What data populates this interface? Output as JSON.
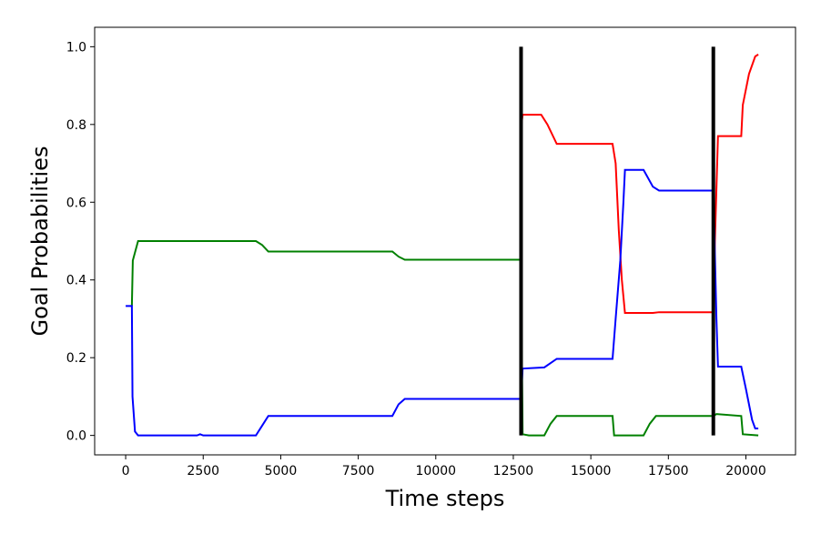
{
  "chart_data": {
    "type": "line",
    "xlabel": "Time steps",
    "ylabel": "Goal Probabilities",
    "xlim": [
      -1000,
      21600
    ],
    "ylim": [
      -0.05,
      1.05
    ],
    "xticks": [
      0,
      2500,
      5000,
      7500,
      10000,
      12500,
      15000,
      17500,
      20000
    ],
    "yticks": [
      {
        "value": 0,
        "label": "0.0"
      },
      0.2,
      0.4,
      0.6,
      0.8,
      {
        "value": 1,
        "label": "1.0"
      }
    ],
    "series": [
      {
        "color": "#ff0000",
        "x": [
          12750,
          12800,
          13400,
          13600,
          13900,
          15700,
          15800,
          15900,
          16000,
          16100,
          17000,
          17200,
          18950,
          19000,
          19100,
          19850,
          19900,
          20100,
          20300,
          20400
        ],
        "values": [
          0.79,
          0.825,
          0.825,
          0.8,
          0.75,
          0.75,
          0.7,
          0.53,
          0.4,
          0.315,
          0.315,
          0.317,
          0.317,
          0.5,
          0.77,
          0.77,
          0.85,
          0.93,
          0.975,
          0.98
        ]
      },
      {
        "color": "#008000",
        "x": [
          200,
          230,
          400,
          4200,
          4400,
          4600,
          8600,
          8800,
          9000,
          12750,
          12800,
          13000,
          13500,
          13700,
          13900,
          15700,
          15750,
          16700,
          16900,
          17100,
          18950,
          19050,
          19850,
          19900,
          20400
        ],
        "values": [
          0.333,
          0.45,
          0.5,
          0.5,
          0.49,
          0.473,
          0.473,
          0.46,
          0.452,
          0.452,
          0.003,
          0,
          0,
          0.03,
          0.05,
          0.05,
          0,
          0,
          0.03,
          0.05,
          0.05,
          0.055,
          0.05,
          0.003,
          0
        ]
      },
      {
        "color": "#0000ff",
        "x": [
          0,
          200,
          220,
          300,
          400,
          2300,
          2400,
          2500,
          4200,
          4400,
          4600,
          8600,
          8800,
          9000,
          12750,
          12800,
          13500,
          13900,
          15700,
          15800,
          15950,
          16050,
          16100,
          16700,
          17000,
          17200,
          18950,
          19050,
          19100,
          19850,
          20000,
          20200,
          20300,
          20400
        ],
        "values": [
          0.333,
          0.333,
          0.1,
          0.01,
          0,
          0,
          0.003,
          0,
          0,
          0.025,
          0.05,
          0.05,
          0.08,
          0.094,
          0.094,
          0.172,
          0.175,
          0.197,
          0.197,
          0.3,
          0.45,
          0.6,
          0.683,
          0.683,
          0.64,
          0.63,
          0.63,
          0.3,
          0.177,
          0.177,
          0.12,
          0.04,
          0.018,
          0.018
        ]
      }
    ],
    "vlines": [
      {
        "x": 12750,
        "y": [
          0,
          1
        ],
        "color": "#000000"
      },
      {
        "x": 18950,
        "y": [
          0,
          1
        ],
        "color": "#000000"
      }
    ]
  }
}
